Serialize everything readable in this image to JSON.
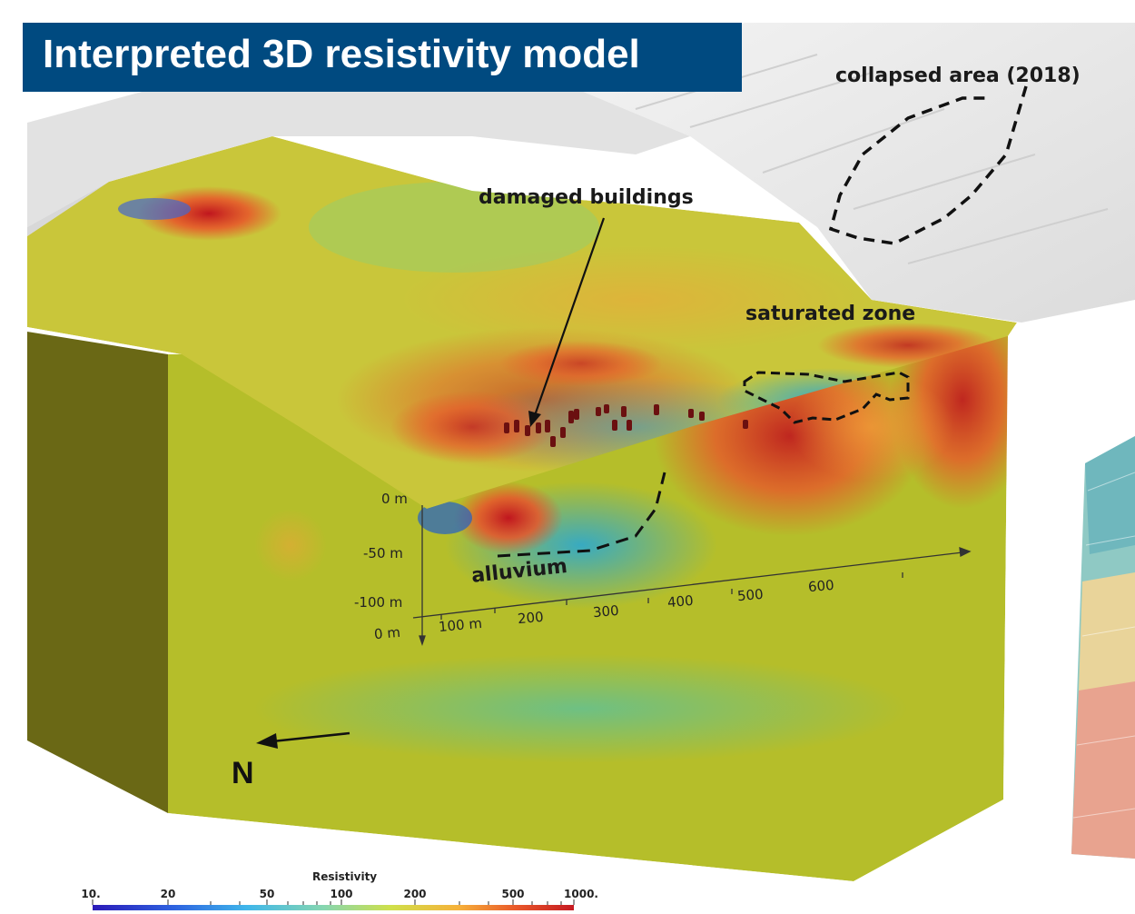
{
  "title": "Interpreted 3D resistivity model",
  "annotations": {
    "collapsed_area": "collapsed area (2018)",
    "damaged_buildings": "damaged buildings",
    "saturated_zone": "saturated zone",
    "alluvium": "alluvium",
    "north": "N"
  },
  "depth_axis": {
    "labels": [
      "0 m",
      "-50 m",
      "-100 m"
    ]
  },
  "distance_axis": {
    "labels": [
      "0 m",
      "100 m",
      "200",
      "300",
      "400",
      "500",
      "600"
    ]
  },
  "colorbar": {
    "title": "Resistivity",
    "ticks": [
      "10.",
      "20",
      "50",
      "100",
      "200",
      "500",
      "1000."
    ],
    "scale": "log",
    "range": [
      10,
      1000
    ],
    "colors": [
      "#2b1ab8",
      "#2e63e0",
      "#3fb6ea",
      "#86d6b0",
      "#cfe04a",
      "#f6b13a",
      "#e9582a",
      "#c51a22"
    ]
  },
  "colors": {
    "title_banner": "#004a80",
    "body_green": "#b5be2a",
    "side_face": "#6a6815",
    "terrain": "#eeeeee"
  }
}
